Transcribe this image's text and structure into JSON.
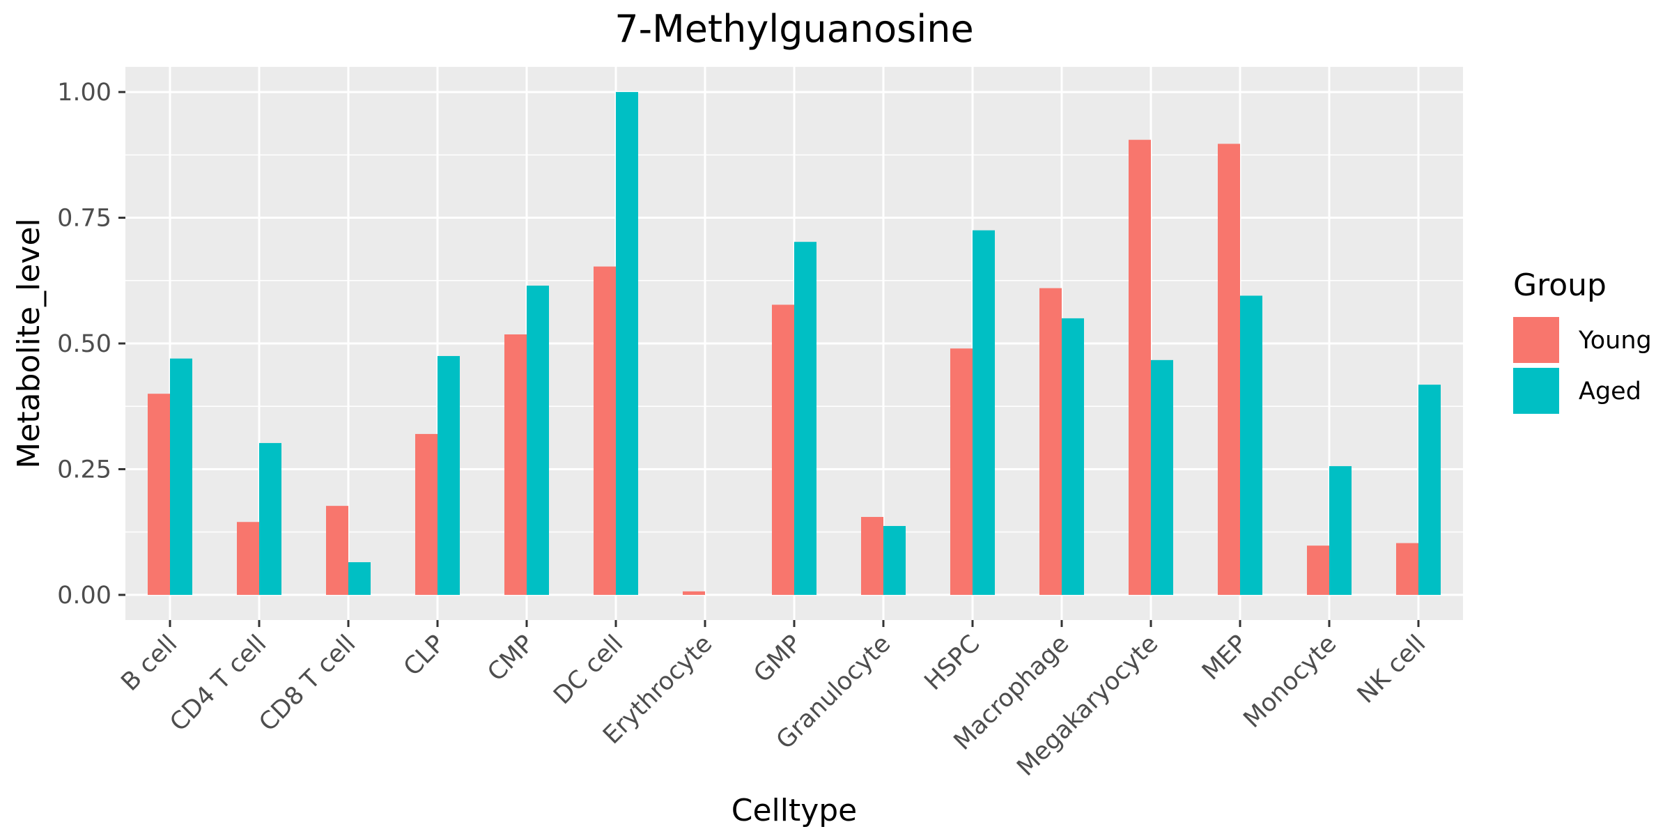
{
  "chart_data": {
    "type": "bar",
    "title": "7-Methylguanosine",
    "xlabel": "Celltype",
    "ylabel": "Metabolite_level",
    "categories": [
      "B cell",
      "CD4 T cell",
      "CD8 T cell",
      "CLP",
      "CMP",
      "DC cell",
      "Erythrocyte",
      "GMP",
      "Granulocyte",
      "HSPC",
      "Macrophage",
      "Megakaryocyte",
      "MEP",
      "Monocyte",
      "NK cell"
    ],
    "series": [
      {
        "name": "Young",
        "color": "#F8766D",
        "values": [
          0.4,
          0.145,
          0.177,
          0.32,
          0.518,
          0.653,
          0.007,
          0.577,
          0.155,
          0.49,
          0.61,
          0.905,
          0.897,
          0.098,
          0.103
        ]
      },
      {
        "name": "Aged",
        "color": "#00BFC4",
        "values": [
          0.47,
          0.302,
          0.065,
          0.475,
          0.615,
          1.0,
          0.0,
          0.702,
          0.137,
          0.725,
          0.55,
          0.467,
          0.595,
          0.256,
          0.418
        ]
      }
    ],
    "ylim": [
      -0.05,
      1.05
    ],
    "yticks": [
      0.0,
      0.25,
      0.5,
      0.75,
      1.0
    ],
    "ytick_labels": [
      "0.00",
      "0.25",
      "0.50",
      "0.75",
      "1.00"
    ],
    "grid": true,
    "panel_background": "#EBEBEB",
    "legend": {
      "title": "Group",
      "position": "right",
      "entries": [
        "Young",
        "Aged"
      ]
    }
  }
}
